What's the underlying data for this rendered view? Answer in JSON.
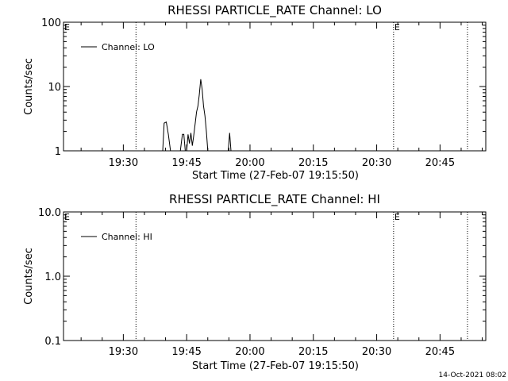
{
  "chart_data": [
    {
      "type": "line",
      "title": "RHESSI PARTICLE_RATE Channel: LO",
      "xlabel": "Start Time (27-Feb-07 19:15:50)",
      "ylabel": "Counts/sec",
      "yscale": "log",
      "ylim": [
        1,
        100
      ],
      "yticks": [
        {
          "value": 1,
          "label": "1"
        },
        {
          "value": 10,
          "label": "10"
        },
        {
          "value": 100,
          "label": "100"
        }
      ],
      "xlim": [
        "19:15:50",
        "20:55:50"
      ],
      "xticks": [
        "19:30",
        "19:45",
        "20:00",
        "20:15",
        "20:30",
        "20:45"
      ],
      "event_lines": [
        "19:33:00",
        "20:34:00",
        "20:51:30"
      ],
      "event_markers": [
        {
          "label": "E",
          "time": "19:15:50"
        },
        {
          "label": "E",
          "time": "20:34:00"
        }
      ],
      "legend": {
        "placement": "top-left",
        "entries": [
          "Channel: LO"
        ]
      },
      "grid": false,
      "series": [
        {
          "name": "Channel: LO",
          "points": [
            {
              "x": "19:39:20",
              "y": 1
            },
            {
              "x": "19:39:40",
              "y": 2.7
            },
            {
              "x": "19:40:10",
              "y": 2.8
            },
            {
              "x": "19:40:40",
              "y": 1.8
            },
            {
              "x": "19:41:10",
              "y": 1
            },
            {
              "x": "19:43:30",
              "y": 1
            },
            {
              "x": "19:44:00",
              "y": 1.8
            },
            {
              "x": "19:44:20",
              "y": 1.8
            },
            {
              "x": "19:44:40",
              "y": 1
            },
            {
              "x": "19:45:00",
              "y": 1
            },
            {
              "x": "19:45:20",
              "y": 1.8
            },
            {
              "x": "19:45:40",
              "y": 1.3
            },
            {
              "x": "19:46:00",
              "y": 1.9
            },
            {
              "x": "19:46:20",
              "y": 1.2
            },
            {
              "x": "19:46:40",
              "y": 1.7
            },
            {
              "x": "19:47:00",
              "y": 2.6
            },
            {
              "x": "19:47:20",
              "y": 4.0
            },
            {
              "x": "19:47:40",
              "y": 5.0
            },
            {
              "x": "19:48:00",
              "y": 7.5
            },
            {
              "x": "19:48:20",
              "y": 13
            },
            {
              "x": "19:48:40",
              "y": 9.0
            },
            {
              "x": "19:49:00",
              "y": 5.0
            },
            {
              "x": "19:49:20",
              "y": 3.5
            },
            {
              "x": "19:49:40",
              "y": 2.0
            },
            {
              "x": "19:50:00",
              "y": 1
            },
            {
              "x": "19:54:50",
              "y": 1
            },
            {
              "x": "19:55:10",
              "y": 1.9
            },
            {
              "x": "19:55:30",
              "y": 1
            }
          ]
        }
      ]
    },
    {
      "type": "line",
      "title": "RHESSI PARTICLE_RATE Channel: HI",
      "xlabel": "Start Time (27-Feb-07 19:15:50)",
      "ylabel": "Counts/sec",
      "yscale": "log",
      "ylim": [
        0.1,
        10
      ],
      "yticks": [
        {
          "value": 0.1,
          "label": "0.1"
        },
        {
          "value": 1,
          "label": "1.0"
        },
        {
          "value": 10,
          "label": "10.0"
        }
      ],
      "xlim": [
        "19:15:50",
        "20:55:50"
      ],
      "xticks": [
        "19:30",
        "19:45",
        "20:00",
        "20:15",
        "20:30",
        "20:45"
      ],
      "event_lines": [
        "19:33:00",
        "20:34:00",
        "20:51:30"
      ],
      "event_markers": [
        {
          "label": "E",
          "time": "19:15:50"
        },
        {
          "label": "E",
          "time": "20:34:00"
        }
      ],
      "legend": {
        "placement": "top-left",
        "entries": [
          "Channel: HI"
        ]
      },
      "grid": false,
      "series": [
        {
          "name": "Channel: HI",
          "points": []
        }
      ]
    }
  ],
  "footer": {
    "timestamp": "14-Oct-2021 08:02"
  }
}
